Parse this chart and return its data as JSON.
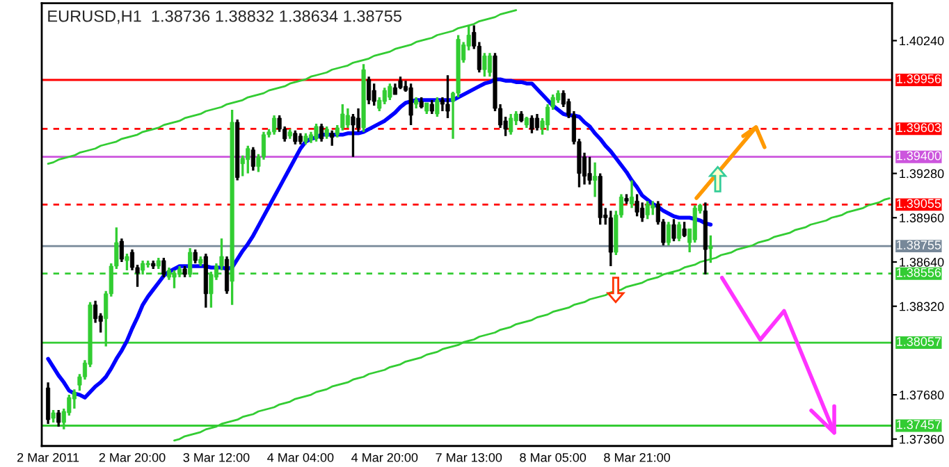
{
  "chart_data": {
    "type": "candlestick",
    "title": "EURUSD,H1  1.38736 1.38832 1.38634 1.38755",
    "categories": [
      "2 Mar 2011",
      null,
      null,
      null,
      null,
      null,
      null,
      null,
      null,
      null,
      null,
      null,
      null,
      null,
      null,
      null,
      "2 Mar 20:00",
      null,
      null,
      null,
      null,
      null,
      null,
      null,
      null,
      null,
      null,
      null,
      null,
      null,
      null,
      null,
      "3 Mar 12:00",
      null,
      null,
      null,
      null,
      null,
      null,
      null,
      null,
      null,
      null,
      null,
      null,
      null,
      null,
      null,
      "4 Mar 04:00",
      null,
      null,
      null,
      null,
      null,
      null,
      null,
      null,
      null,
      null,
      null,
      null,
      null,
      null,
      null,
      "4 Mar 20:00",
      null,
      null,
      null,
      null,
      null,
      null,
      null,
      null,
      null,
      null,
      null,
      null,
      null,
      null,
      null,
      "7 Mar 13:00",
      null,
      null,
      null,
      null,
      null,
      null,
      null,
      null,
      null,
      null,
      null,
      null,
      null,
      null,
      null,
      "8 Mar 05:00",
      null,
      null,
      null,
      null,
      null,
      null,
      null,
      null,
      null,
      null,
      null,
      null,
      null,
      null,
      null,
      "8 Mar 21:00",
      null,
      null,
      null,
      null,
      null,
      null,
      null,
      null,
      null,
      null,
      null,
      null,
      null,
      null,
      null,
      null,
      null,
      null,
      null,
      null,
      null,
      null,
      null,
      null,
      null,
      null,
      null,
      null,
      null,
      null,
      null,
      null,
      null,
      null,
      null,
      null,
      null,
      null,
      null,
      null,
      null,
      null,
      null,
      null,
      null,
      null,
      null,
      null
    ],
    "ohlc": [
      [
        1.3773,
        1.3777,
        1.3747,
        1.375
      ],
      [
        1.3751,
        1.3757,
        1.3748,
        1.3755
      ],
      [
        1.3755,
        1.3757,
        1.3745,
        1.3748
      ],
      [
        1.3748,
        1.3758,
        1.3743,
        1.3756
      ],
      [
        1.3755,
        1.3768,
        1.3753,
        1.3766
      ],
      [
        1.3765,
        1.3772,
        1.3758,
        1.377
      ],
      [
        1.3775,
        1.3783,
        1.3771,
        1.3781
      ],
      [
        1.3781,
        1.3793,
        1.3779,
        1.3791
      ],
      [
        1.379,
        1.3835,
        1.3788,
        1.3833
      ],
      [
        1.3833,
        1.3836,
        1.382,
        1.3823
      ],
      [
        1.3825,
        1.3827,
        1.3813,
        1.3821
      ],
      [
        1.3823,
        1.3843,
        1.3803,
        1.3841
      ],
      [
        1.3841,
        1.3863,
        1.3839,
        1.3861
      ],
      [
        1.3861,
        1.3889,
        1.3859,
        1.3878
      ],
      [
        1.3879,
        1.3881,
        1.3864,
        1.3866
      ],
      [
        1.3865,
        1.387,
        1.3858,
        1.3868
      ],
      [
        1.3871,
        1.3873,
        1.3858,
        1.386
      ],
      [
        1.386,
        1.3862,
        1.3846,
        1.3856
      ],
      [
        1.3858,
        1.3865,
        1.3855,
        1.3863
      ],
      [
        1.3862,
        1.3865,
        1.386,
        1.3863
      ],
      [
        1.3863,
        1.3865,
        1.3859,
        1.3861
      ],
      [
        1.3861,
        1.3867,
        1.3859,
        1.3865
      ],
      [
        1.3865,
        1.3867,
        1.3853,
        1.3855
      ],
      [
        1.3853,
        1.386,
        1.3851,
        1.3858
      ],
      [
        1.3853,
        1.3858,
        1.3845,
        1.3856
      ],
      [
        1.3855,
        1.3861,
        1.3853,
        1.3859
      ],
      [
        1.3859,
        1.3861,
        1.3853,
        1.3855
      ],
      [
        1.3855,
        1.3874,
        1.3853,
        1.3871
      ],
      [
        1.3871,
        1.3873,
        1.3863,
        1.3865
      ],
      [
        1.3863,
        1.3868,
        1.3861,
        1.3866
      ],
      [
        1.3868,
        1.387,
        1.3831,
        1.3841
      ],
      [
        1.3841,
        1.3857,
        1.3831,
        1.3855
      ],
      [
        1.3853,
        1.3863,
        1.3851,
        1.3861
      ],
      [
        1.3861,
        1.3881,
        1.3858,
        1.3868
      ],
      [
        1.3866,
        1.3868,
        1.3841,
        1.3843
      ],
      [
        1.385,
        1.3974,
        1.3833,
        1.3965
      ],
      [
        1.3965,
        1.3967,
        1.3923,
        1.3925
      ],
      [
        1.3935,
        1.3941,
        1.3926,
        1.3939
      ],
      [
        1.3938,
        1.3948,
        1.3928,
        1.3946
      ],
      [
        1.3945,
        1.3947,
        1.393,
        1.3933
      ],
      [
        1.3933,
        1.3942,
        1.3929,
        1.394
      ],
      [
        1.394,
        1.3958,
        1.3938,
        1.3956
      ],
      [
        1.3956,
        1.396,
        1.3954,
        1.3958
      ],
      [
        1.3958,
        1.397,
        1.3956,
        1.3968
      ],
      [
        1.3968,
        1.397,
        1.3958,
        1.396
      ],
      [
        1.396,
        1.3962,
        1.3951,
        1.3953
      ],
      [
        1.3955,
        1.396,
        1.3953,
        1.3958
      ],
      [
        1.3957,
        1.3959,
        1.3949,
        1.3951
      ],
      [
        1.3955,
        1.3957,
        1.3949,
        1.3951
      ],
      [
        1.3951,
        1.3957,
        1.3949,
        1.3955
      ],
      [
        1.3952,
        1.3958,
        1.395,
        1.3956
      ],
      [
        1.3953,
        1.3964,
        1.3951,
        1.3962
      ],
      [
        1.3962,
        1.3964,
        1.3951,
        1.3953
      ],
      [
        1.3955,
        1.3962,
        1.3953,
        1.396
      ],
      [
        1.3957,
        1.3959,
        1.3948,
        1.3954
      ],
      [
        1.3956,
        1.3963,
        1.3954,
        1.3961
      ],
      [
        1.3961,
        1.3978,
        1.3959,
        1.3971
      ],
      [
        1.3963,
        1.3975,
        1.3961,
        1.397
      ],
      [
        1.3969,
        1.3971,
        1.394,
        1.3963
      ],
      [
        1.3968,
        1.3975,
        1.3958,
        1.3961
      ],
      [
        1.3961,
        1.4007,
        1.3958,
        1.4003
      ],
      [
        1.3996,
        1.3998,
        1.3978,
        1.3981
      ],
      [
        1.3988,
        1.3993,
        1.3977,
        1.398
      ],
      [
        1.3975,
        1.3983,
        1.3973,
        1.3981
      ],
      [
        1.398,
        1.399,
        1.3978,
        1.3988
      ],
      [
        1.3983,
        1.3993,
        1.3981,
        1.3991
      ],
      [
        1.399,
        1.3993,
        1.3985,
        1.3985
      ],
      [
        1.3995,
        1.3998,
        1.3989,
        1.399
      ],
      [
        1.3991,
        1.3995,
        1.3987,
        1.3988
      ],
      [
        1.399,
        1.3993,
        1.3963,
        1.397
      ],
      [
        1.3978,
        1.3983,
        1.3975,
        1.3981
      ],
      [
        1.398,
        1.3983,
        1.3975,
        1.3976
      ],
      [
        1.3973,
        1.3979,
        1.3971,
        1.3979
      ],
      [
        1.3978,
        1.3981,
        1.3971,
        1.3973
      ],
      [
        1.3971,
        1.3983,
        1.3969,
        1.3981
      ],
      [
        1.3981,
        1.3983,
        1.3973,
        1.3978
      ],
      [
        1.3978,
        1.3999,
        1.3968,
        1.3973
      ],
      [
        1.398,
        1.3987,
        1.3953,
        1.3986
      ],
      [
        1.3986,
        1.4028,
        1.3983,
        1.4025
      ],
      [
        1.401,
        1.4023,
        1.4008,
        1.4021
      ],
      [
        1.402,
        1.4035,
        1.4017,
        1.4028
      ],
      [
        1.403,
        1.4035,
        1.4018,
        1.402
      ],
      [
        1.402,
        1.4023,
        1.4001,
        1.4003
      ],
      [
        1.4003,
        1.4015,
        1.3998,
        1.4013
      ],
      [
        1.4001,
        1.4015,
        1.3998,
        1.4013
      ],
      [
        1.4013,
        1.4015,
        1.3973,
        1.3975
      ],
      [
        1.3975,
        1.3978,
        1.3961,
        1.3963
      ],
      [
        1.3966,
        1.3969,
        1.3955,
        1.396
      ],
      [
        1.3958,
        1.3971,
        1.3956,
        1.3968
      ],
      [
        1.3966,
        1.3973,
        1.3963,
        1.3971
      ],
      [
        1.3971,
        1.3973,
        1.3965,
        1.3966
      ],
      [
        1.3963,
        1.3969,
        1.3961,
        1.3968
      ],
      [
        1.3968,
        1.397,
        1.3957,
        1.396
      ],
      [
        1.3968,
        1.3971,
        1.3959,
        1.3961
      ],
      [
        1.3961,
        1.3968,
        1.3956,
        1.3966
      ],
      [
        1.3963,
        1.3978,
        1.3959,
        1.3976
      ],
      [
        1.3976,
        1.3985,
        1.3974,
        1.3983
      ],
      [
        1.3981,
        1.3988,
        1.3979,
        1.3986
      ],
      [
        1.3986,
        1.3988,
        1.3976,
        1.3978
      ],
      [
        1.398,
        1.3982,
        1.3968,
        1.397
      ],
      [
        1.397,
        1.3973,
        1.3949,
        1.3951
      ],
      [
        1.3951,
        1.3953,
        1.3918,
        1.3928
      ],
      [
        1.394,
        1.3943,
        1.392,
        1.3926
      ],
      [
        1.3928,
        1.394,
        1.392,
        1.3923
      ],
      [
        1.3923,
        1.3936,
        1.3911,
        1.3926
      ],
      [
        1.3926,
        1.3928,
        1.3891,
        1.3896
      ],
      [
        1.3898,
        1.3903,
        1.3891,
        1.3896
      ],
      [
        1.3896,
        1.3901,
        1.3861,
        1.3871
      ],
      [
        1.3871,
        1.3901,
        1.3869,
        1.3898
      ],
      [
        1.3898,
        1.3913,
        1.3896,
        1.3911
      ],
      [
        1.391,
        1.3913,
        1.3906,
        1.3908
      ],
      [
        1.3906,
        1.3923,
        1.3903,
        1.3911
      ],
      [
        1.3908,
        1.3913,
        1.3897,
        1.39
      ],
      [
        1.3903,
        1.3907,
        1.3893,
        1.3896
      ],
      [
        1.3898,
        1.3908,
        1.3895,
        1.3906
      ],
      [
        1.3903,
        1.3908,
        1.3898,
        1.3905
      ],
      [
        1.3906,
        1.3908,
        1.3891,
        1.3893
      ],
      [
        1.3893,
        1.3895,
        1.3876,
        1.3878
      ],
      [
        1.3878,
        1.3893,
        1.3876,
        1.3891
      ],
      [
        1.3891,
        1.3895,
        1.3879,
        1.3881
      ],
      [
        1.3881,
        1.3893,
        1.3879,
        1.3891
      ],
      [
        1.3888,
        1.3893,
        1.3882,
        1.3883
      ],
      [
        1.3878,
        1.3888,
        1.3871,
        1.3888
      ],
      [
        1.388,
        1.3905,
        1.3878,
        1.3903
      ],
      [
        1.3901,
        1.3906,
        1.3899,
        1.3905
      ],
      [
        1.3901,
        1.3907,
        1.3855,
        1.3873
      ],
      [
        1.38736,
        1.38832,
        1.38634,
        1.38755
      ],
      null,
      null,
      null,
      null,
      null,
      null,
      null,
      null,
      null,
      null,
      null,
      null,
      null,
      null,
      null,
      null,
      null,
      null,
      null,
      null,
      null,
      null,
      null,
      null,
      null,
      null,
      null,
      null,
      null,
      null,
      null,
      null,
      null,
      null
    ],
    "series": [
      {
        "type": "line",
        "color": "#0000ff",
        "values": [
          1.3794,
          1.3788,
          1.3782,
          1.3777,
          1.3771,
          1.3769,
          1.3768,
          1.3766,
          1.377,
          1.3774,
          1.3777,
          1.3781,
          1.3787,
          1.3794,
          1.38,
          1.3807,
          1.3816,
          1.3824,
          1.3833,
          1.3839,
          1.3844,
          1.3849,
          1.3854,
          1.3857,
          1.3859,
          1.3861,
          1.3861,
          1.3861,
          1.3861,
          1.3861,
          1.3861,
          1.386,
          1.386,
          1.386,
          1.3859,
          1.386,
          1.3866,
          1.3872,
          1.3877,
          1.3883,
          1.389,
          1.3897,
          1.3904,
          1.3911,
          1.3918,
          1.3925,
          1.3932,
          1.3939,
          1.3946,
          1.3951,
          1.3953,
          1.3954,
          1.3956,
          1.3956,
          1.3956,
          1.3956,
          1.3956,
          1.3957,
          1.3957,
          1.3957,
          1.3958,
          1.396,
          1.3962,
          1.3964,
          1.3966,
          1.3969,
          1.3972,
          1.3976,
          1.3979,
          1.398,
          1.3981,
          1.3981,
          1.3981,
          1.3981,
          1.3981,
          1.3981,
          1.3981,
          1.3981,
          1.3983,
          1.3985,
          1.3987,
          1.3989,
          1.3991,
          1.3993,
          1.3994,
          1.3996,
          1.3996,
          1.3995,
          1.3995,
          1.3994,
          1.3994,
          1.3993,
          1.3993,
          1.3989,
          1.3985,
          1.3981,
          1.3977,
          1.3974,
          1.3971,
          1.397,
          1.397,
          1.3969,
          1.3965,
          1.3962,
          1.3957,
          1.3953,
          1.3948,
          1.3944,
          1.3939,
          1.3934,
          1.3929,
          1.3923,
          1.3918,
          1.3912,
          1.3909,
          1.3906,
          1.3904,
          1.3901,
          1.3899,
          1.3897,
          1.3896,
          1.3896,
          1.3896,
          1.3895,
          1.3894,
          1.3892,
          1.3891,
          null,
          null,
          null,
          null,
          null,
          null,
          null,
          null,
          null,
          null,
          null,
          null,
          null,
          null,
          null,
          null,
          null,
          null,
          null,
          null,
          null,
          null,
          null,
          null,
          null,
          null,
          null,
          null,
          null,
          null,
          null,
          null,
          null,
          null
        ]
      },
      {
        "type": "line",
        "color": "#33cc33",
        "values": [
          1.3935,
          1.3936,
          1.3938,
          1.3939,
          1.394,
          1.3941,
          1.3943,
          1.3944,
          1.3945,
          1.3946,
          1.3948,
          1.3949,
          1.395,
          1.3951,
          1.3953,
          1.3954,
          1.3955,
          1.3956,
          1.3958,
          1.3959,
          1.396,
          1.3961,
          1.3963,
          1.3964,
          1.3965,
          1.3966,
          1.3968,
          1.3969,
          1.397,
          1.3971,
          1.3973,
          1.3974,
          1.3975,
          1.3976,
          1.3978,
          1.3979,
          1.398,
          1.3981,
          1.3983,
          1.3984,
          1.3985,
          1.3986,
          1.3988,
          1.3989,
          1.399,
          1.3991,
          1.3993,
          1.3994,
          1.3995,
          1.3996,
          1.3998,
          1.3999,
          1.4,
          1.4001,
          1.4003,
          1.4004,
          1.4005,
          1.4006,
          1.4008,
          1.4009,
          1.401,
          1.4011,
          1.4013,
          1.4014,
          1.4015,
          1.4016,
          1.4018,
          1.4019,
          1.402,
          1.4021,
          1.4023,
          1.4024,
          1.4025,
          1.4026,
          1.4028,
          1.4029,
          1.403,
          1.4031,
          1.4033,
          1.4034,
          1.4035,
          1.4036,
          1.4038,
          1.4039,
          1.404,
          1.4041,
          1.4043,
          1.4044,
          1.4045,
          1.4046,
          null,
          null,
          null,
          null,
          null,
          null,
          null,
          null,
          null,
          null,
          null,
          null,
          null,
          null,
          null,
          null,
          null,
          null,
          null,
          null,
          null,
          null,
          null,
          null,
          null,
          null,
          null,
          null,
          null,
          null,
          null,
          null,
          null,
          null,
          null,
          null,
          null,
          null,
          null,
          null,
          null,
          null,
          null,
          null,
          null,
          null,
          null,
          null,
          null,
          null,
          null,
          null,
          null,
          null,
          null,
          null,
          null,
          null,
          null,
          null,
          null,
          null,
          null,
          null,
          null,
          null,
          null,
          null,
          null,
          null,
          null
        ]
      },
      {
        "type": "line",
        "color": "#33cc33",
        "values": [
          null,
          null,
          null,
          null,
          null,
          null,
          null,
          null,
          null,
          null,
          null,
          null,
          null,
          null,
          null,
          null,
          null,
          null,
          null,
          null,
          null,
          null,
          null,
          null,
          1.3735,
          1.3736,
          1.3738,
          1.3739,
          1.374,
          1.3741,
          1.3743,
          1.3744,
          1.3745,
          1.3747,
          1.3748,
          1.3749,
          1.375,
          1.3752,
          1.3753,
          1.3754,
          1.3756,
          1.3757,
          1.3758,
          1.3759,
          1.3761,
          1.3762,
          1.3763,
          1.3765,
          1.3766,
          1.3767,
          1.3768,
          1.377,
          1.3771,
          1.3772,
          1.3774,
          1.3775,
          1.3776,
          1.3777,
          1.3779,
          1.378,
          1.3781,
          1.3783,
          1.3784,
          1.3785,
          1.3786,
          1.3788,
          1.3789,
          1.379,
          1.3792,
          1.3793,
          1.3794,
          1.3795,
          1.3797,
          1.3798,
          1.3799,
          1.3801,
          1.3802,
          1.3803,
          1.3804,
          1.3806,
          1.3807,
          1.3808,
          1.381,
          1.3811,
          1.3812,
          1.3813,
          1.3815,
          1.3816,
          1.3817,
          1.3819,
          1.382,
          1.3821,
          1.3822,
          1.3824,
          1.3825,
          1.3826,
          1.3828,
          1.3829,
          1.383,
          1.3831,
          1.3833,
          1.3834,
          1.3835,
          1.3837,
          1.3838,
          1.3839,
          1.384,
          1.3842,
          1.3843,
          1.3844,
          1.3846,
          1.3847,
          1.3848,
          1.3849,
          1.3851,
          1.3852,
          1.3853,
          1.3855,
          1.3856,
          1.3857,
          1.3858,
          1.386,
          1.3861,
          1.3862,
          1.3864,
          1.3865,
          1.3866,
          1.3867,
          1.3869,
          1.387,
          1.3871,
          1.3873,
          1.3874,
          1.3875,
          1.3876,
          1.3878,
          1.3879,
          1.388,
          1.3882,
          1.3883,
          1.3884,
          1.3885,
          1.3887,
          1.3888,
          1.3889,
          1.3891,
          1.3892,
          1.3893,
          1.3894,
          1.3896,
          1.3897,
          1.3898,
          1.39,
          1.3901,
          1.3902,
          1.3903,
          1.3905,
          1.3906,
          1.3907,
          1.3909,
          1.391
        ]
      }
    ],
    "ref_lines": [
      {
        "axis": "y",
        "value": 1.39956,
        "label": "1.39956",
        "color": "#ff0000",
        "line_style": "solid"
      },
      {
        "axis": "y",
        "value": 1.39603,
        "label": "1.39603",
        "color": "#ff0000",
        "line_style": "dashed"
      },
      {
        "axis": "y",
        "value": 1.394,
        "label": "1.39400",
        "color": "#cc55dd",
        "line_style": "solid"
      },
      {
        "axis": "y",
        "value": 1.39055,
        "label": "1.39055",
        "color": "#ff0000",
        "line_style": "dashed"
      },
      {
        "axis": "y",
        "value": 1.38755,
        "label": "1.38755",
        "color": "#778899",
        "line_style": "solid"
      },
      {
        "axis": "y",
        "value": 1.38556,
        "label": "1.38556",
        "color": "#33cc33",
        "line_style": "dashed"
      },
      {
        "axis": "y",
        "value": 1.38057,
        "label": "1.38057",
        "color": "#33cc33",
        "line_style": "solid"
      },
      {
        "axis": "y",
        "value": 1.37457,
        "label": "1.37457",
        "color": "#33cc33",
        "line_style": "solid"
      }
    ],
    "ylim": [
      1.3731,
      1.4051
    ],
    "yticks": [
      {
        "value": 1.4024,
        "label": "1.40240"
      },
      {
        "value": 1.3928,
        "label": "1.39280"
      },
      {
        "value": 1.3896,
        "label": "1.38960"
      },
      {
        "value": 1.3864,
        "label": "1.38640"
      },
      {
        "value": 1.3832,
        "label": "1.38320"
      },
      {
        "value": 1.3768,
        "label": "1.37680"
      },
      {
        "value": 1.3736,
        "label": "1.37360"
      }
    ],
    "grid": false,
    "legend": false
  }
}
